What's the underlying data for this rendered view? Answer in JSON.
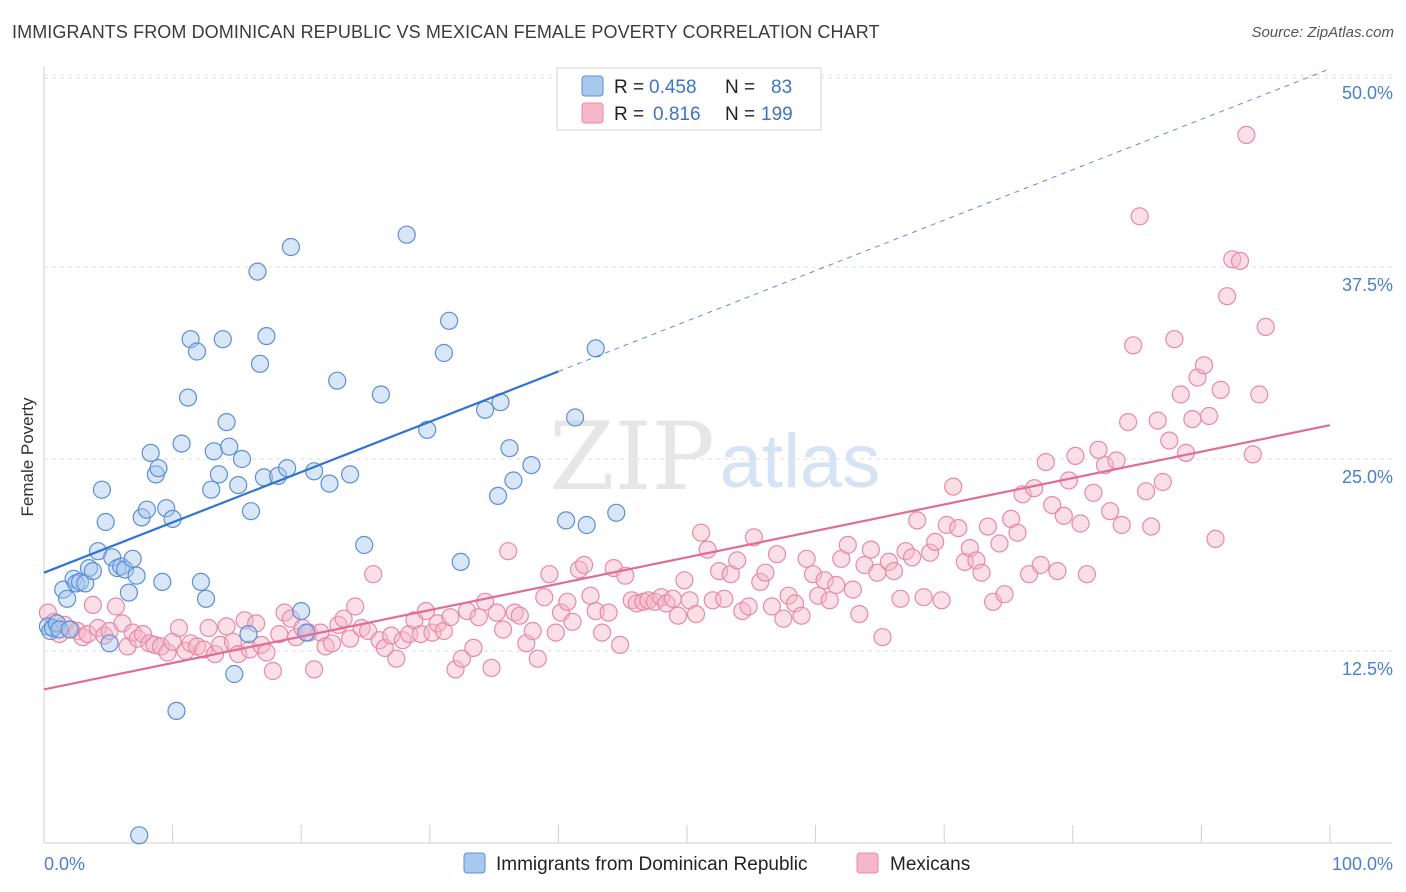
{
  "title": "IMMIGRANTS FROM DOMINICAN REPUBLIC VS MEXICAN FEMALE POVERTY CORRELATION CHART",
  "source": "Source: ZipAtlas.com",
  "watermark": {
    "zip": "ZIP",
    "atlas": "atlas"
  },
  "colors": {
    "blue_fill": "#a9c8ee",
    "blue_stroke": "#5b8fd6",
    "blue_line": "#2f74d0",
    "pink_fill": "#f5b8ca",
    "pink_stroke": "#e889a8",
    "pink_line": "#e06d96",
    "axis_text": "#4a7fd0",
    "grid": "#dcdcdc"
  },
  "legend": {
    "rows": [
      {
        "r_label": "R =",
        "r_value": "0.458",
        "n_label": "N =",
        "n_value": "83"
      },
      {
        "r_label": "R =",
        "r_value": "0.816",
        "n_label": "N =",
        "n_value": "199"
      }
    ]
  },
  "bottom_legend": [
    {
      "label": "Immigrants from Dominican Republic",
      "color": "blue"
    },
    {
      "label": "Mexicans",
      "color": "pink"
    }
  ],
  "chart_data": {
    "type": "scatter",
    "ylabel": "Female Poverty",
    "xlabel": "",
    "xlim": [
      0,
      100
    ],
    "ylim": [
      0,
      52
    ],
    "x_tick_labels": [
      "0.0%",
      "100.0%"
    ],
    "y_ticks": [
      12.5,
      25.0,
      37.5,
      50.0
    ],
    "y_tick_labels": [
      "12.5%",
      "25.0%",
      "37.5%",
      "50.0%"
    ],
    "grid": true,
    "series": [
      {
        "name": "Immigrants from Dominican Republic",
        "color": "blue",
        "trend": {
          "x": [
            0,
            40
          ],
          "y": [
            17.6,
            30.7
          ],
          "dashed_to": [
            100,
            50.4
          ]
        },
        "points": [
          [
            0.3,
            14.1
          ],
          [
            0.5,
            13.8
          ],
          [
            0.7,
            14.0
          ],
          [
            1.0,
            14.3
          ],
          [
            1.2,
            13.9
          ],
          [
            1.5,
            16.5
          ],
          [
            1.8,
            15.9
          ],
          [
            2.0,
            13.9
          ],
          [
            2.3,
            17.2
          ],
          [
            2.5,
            16.9
          ],
          [
            2.8,
            17.0
          ],
          [
            3.2,
            16.9
          ],
          [
            3.5,
            17.9
          ],
          [
            3.8,
            17.7
          ],
          [
            4.2,
            19.0
          ],
          [
            4.5,
            23.0
          ],
          [
            4.8,
            20.9
          ],
          [
            5.3,
            18.6
          ],
          [
            5.7,
            17.9
          ],
          [
            6.0,
            18.0
          ],
          [
            6.3,
            17.8
          ],
          [
            6.6,
            16.3
          ],
          [
            6.9,
            18.5
          ],
          [
            7.2,
            17.4
          ],
          [
            7.6,
            21.2
          ],
          [
            8.0,
            21.7
          ],
          [
            8.3,
            25.4
          ],
          [
            8.7,
            24.0
          ],
          [
            8.9,
            24.4
          ],
          [
            9.2,
            17.0
          ],
          [
            9.5,
            21.8
          ],
          [
            10.0,
            21.1
          ],
          [
            10.3,
            8.6
          ],
          [
            10.7,
            26.0
          ],
          [
            11.2,
            29.0
          ],
          [
            11.4,
            32.8
          ],
          [
            11.9,
            32.0
          ],
          [
            12.2,
            17.0
          ],
          [
            12.6,
            15.9
          ],
          [
            13.0,
            23.0
          ],
          [
            13.2,
            25.5
          ],
          [
            13.6,
            24.0
          ],
          [
            13.9,
            32.8
          ],
          [
            14.2,
            27.4
          ],
          [
            14.4,
            25.8
          ],
          [
            14.8,
            11.0
          ],
          [
            15.1,
            23.3
          ],
          [
            15.4,
            25.0
          ],
          [
            15.9,
            13.6
          ],
          [
            16.1,
            21.6
          ],
          [
            16.6,
            37.2
          ],
          [
            16.8,
            31.2
          ],
          [
            17.1,
            23.8
          ],
          [
            17.3,
            33.0
          ],
          [
            18.2,
            23.9
          ],
          [
            18.9,
            24.4
          ],
          [
            19.2,
            38.8
          ],
          [
            20.0,
            15.1
          ],
          [
            20.4,
            13.7
          ],
          [
            21.0,
            24.2
          ],
          [
            22.2,
            23.4
          ],
          [
            22.8,
            30.1
          ],
          [
            23.8,
            24.0
          ],
          [
            24.9,
            19.4
          ],
          [
            26.2,
            29.2
          ],
          [
            28.2,
            39.6
          ],
          [
            29.8,
            26.9
          ],
          [
            31.1,
            31.9
          ],
          [
            31.5,
            34.0
          ],
          [
            32.4,
            18.3
          ],
          [
            34.3,
            28.2
          ],
          [
            35.3,
            22.6
          ],
          [
            35.5,
            28.7
          ],
          [
            36.2,
            25.7
          ],
          [
            36.5,
            23.6
          ],
          [
            37.9,
            24.6
          ],
          [
            40.6,
            21.0
          ],
          [
            41.3,
            27.7
          ],
          [
            42.2,
            20.7
          ],
          [
            42.9,
            32.2
          ],
          [
            44.5,
            21.5
          ],
          [
            7.4,
            0.5
          ],
          [
            5.1,
            13.0
          ]
        ]
      },
      {
        "name": "Mexicans",
        "color": "pink",
        "trend": {
          "x": [
            0,
            100
          ],
          "y": [
            10.0,
            27.2
          ]
        },
        "points": [
          [
            0.3,
            15.0
          ],
          [
            0.8,
            14.4
          ],
          [
            1.2,
            13.6
          ],
          [
            1.6,
            14.2
          ],
          [
            2.1,
            13.9
          ],
          [
            2.6,
            13.8
          ],
          [
            3.0,
            13.4
          ],
          [
            3.4,
            13.6
          ],
          [
            3.8,
            15.5
          ],
          [
            4.2,
            14.0
          ],
          [
            4.7,
            13.5
          ],
          [
            5.1,
            13.8
          ],
          [
            5.6,
            15.4
          ],
          [
            6.1,
            14.3
          ],
          [
            6.5,
            12.8
          ],
          [
            6.9,
            13.7
          ],
          [
            7.3,
            13.3
          ],
          [
            7.7,
            13.6
          ],
          [
            8.2,
            13.0
          ],
          [
            8.6,
            12.9
          ],
          [
            9.1,
            12.8
          ],
          [
            9.6,
            12.4
          ],
          [
            10.0,
            13.1
          ],
          [
            10.5,
            14.0
          ],
          [
            11.0,
            12.5
          ],
          [
            11.4,
            13.0
          ],
          [
            11.9,
            12.8
          ],
          [
            12.4,
            12.6
          ],
          [
            12.8,
            14.0
          ],
          [
            13.3,
            12.3
          ],
          [
            13.7,
            12.9
          ],
          [
            14.2,
            14.1
          ],
          [
            14.7,
            13.1
          ],
          [
            15.1,
            12.3
          ],
          [
            15.6,
            14.5
          ],
          [
            16.0,
            12.6
          ],
          [
            16.5,
            14.3
          ],
          [
            16.9,
            12.9
          ],
          [
            17.3,
            12.4
          ],
          [
            17.8,
            11.2
          ],
          [
            18.3,
            13.6
          ],
          [
            18.7,
            15.0
          ],
          [
            19.2,
            14.6
          ],
          [
            19.6,
            13.4
          ],
          [
            20.1,
            14.0
          ],
          [
            20.6,
            13.7
          ],
          [
            21.0,
            11.3
          ],
          [
            21.5,
            13.7
          ],
          [
            21.9,
            12.8
          ],
          [
            22.4,
            13.0
          ],
          [
            22.9,
            14.2
          ],
          [
            23.3,
            14.6
          ],
          [
            23.8,
            13.3
          ],
          [
            24.2,
            15.4
          ],
          [
            24.7,
            14.0
          ],
          [
            25.2,
            13.8
          ],
          [
            25.6,
            17.5
          ],
          [
            26.1,
            13.2
          ],
          [
            26.5,
            12.7
          ],
          [
            27.0,
            13.5
          ],
          [
            27.4,
            12.0
          ],
          [
            27.9,
            13.2
          ],
          [
            28.4,
            13.6
          ],
          [
            28.8,
            14.5
          ],
          [
            29.3,
            13.6
          ],
          [
            29.7,
            15.1
          ],
          [
            30.2,
            13.7
          ],
          [
            30.6,
            14.3
          ],
          [
            31.1,
            13.8
          ],
          [
            31.6,
            14.7
          ],
          [
            32.0,
            11.3
          ],
          [
            32.5,
            12.0
          ],
          [
            32.9,
            15.1
          ],
          [
            33.4,
            12.7
          ],
          [
            33.8,
            14.7
          ],
          [
            34.3,
            15.7
          ],
          [
            34.8,
            11.4
          ],
          [
            35.2,
            15.0
          ],
          [
            35.7,
            13.9
          ],
          [
            36.1,
            19.0
          ],
          [
            36.6,
            15.0
          ],
          [
            37.0,
            14.8
          ],
          [
            37.5,
            13.0
          ],
          [
            38.0,
            13.8
          ],
          [
            38.4,
            12.0
          ],
          [
            38.9,
            16.0
          ],
          [
            39.3,
            17.5
          ],
          [
            39.8,
            13.7
          ],
          [
            40.2,
            15.0
          ],
          [
            40.7,
            15.7
          ],
          [
            41.1,
            14.4
          ],
          [
            41.6,
            17.8
          ],
          [
            42.0,
            18.1
          ],
          [
            42.5,
            16.1
          ],
          [
            42.9,
            15.1
          ],
          [
            43.4,
            13.7
          ],
          [
            43.9,
            15.0
          ],
          [
            44.3,
            17.9
          ],
          [
            44.8,
            12.9
          ],
          [
            45.2,
            17.4
          ],
          [
            45.7,
            15.8
          ],
          [
            46.1,
            15.6
          ],
          [
            46.6,
            15.7
          ],
          [
            47.0,
            15.8
          ],
          [
            47.5,
            15.7
          ],
          [
            48.0,
            16.0
          ],
          [
            48.4,
            15.6
          ],
          [
            48.9,
            15.9
          ],
          [
            49.3,
            14.8
          ],
          [
            49.8,
            17.1
          ],
          [
            50.2,
            15.8
          ],
          [
            50.7,
            14.9
          ],
          [
            51.1,
            20.2
          ],
          [
            51.6,
            19.1
          ],
          [
            52.0,
            15.8
          ],
          [
            52.5,
            17.7
          ],
          [
            52.9,
            15.9
          ],
          [
            53.4,
            17.5
          ],
          [
            53.9,
            18.4
          ],
          [
            54.3,
            15.1
          ],
          [
            54.8,
            15.4
          ],
          [
            55.2,
            19.9
          ],
          [
            55.7,
            17.0
          ],
          [
            56.1,
            17.6
          ],
          [
            56.6,
            15.4
          ],
          [
            57.0,
            18.8
          ],
          [
            57.5,
            14.6
          ],
          [
            57.9,
            16.1
          ],
          [
            58.4,
            15.6
          ],
          [
            58.9,
            14.8
          ],
          [
            59.3,
            18.5
          ],
          [
            59.8,
            17.5
          ],
          [
            60.2,
            16.1
          ],
          [
            60.7,
            17.1
          ],
          [
            61.1,
            15.8
          ],
          [
            61.6,
            16.8
          ],
          [
            62.0,
            18.5
          ],
          [
            62.5,
            19.4
          ],
          [
            62.9,
            16.5
          ],
          [
            63.4,
            14.9
          ],
          [
            63.8,
            18.1
          ],
          [
            64.3,
            19.1
          ],
          [
            64.8,
            17.6
          ],
          [
            65.2,
            13.4
          ],
          [
            65.7,
            18.3
          ],
          [
            66.1,
            17.7
          ],
          [
            66.6,
            15.9
          ],
          [
            67.0,
            19.0
          ],
          [
            67.5,
            18.6
          ],
          [
            67.9,
            21.0
          ],
          [
            68.4,
            16.0
          ],
          [
            68.9,
            18.9
          ],
          [
            69.3,
            19.6
          ],
          [
            69.8,
            15.8
          ],
          [
            70.2,
            20.7
          ],
          [
            70.7,
            23.2
          ],
          [
            71.1,
            20.5
          ],
          [
            71.6,
            18.3
          ],
          [
            72.0,
            19.2
          ],
          [
            72.5,
            18.4
          ],
          [
            72.9,
            17.6
          ],
          [
            73.4,
            20.6
          ],
          [
            73.8,
            15.7
          ],
          [
            74.3,
            19.5
          ],
          [
            74.7,
            16.2
          ],
          [
            75.2,
            21.1
          ],
          [
            75.7,
            20.2
          ],
          [
            76.1,
            22.7
          ],
          [
            76.6,
            17.5
          ],
          [
            77.0,
            23.1
          ],
          [
            77.5,
            18.1
          ],
          [
            77.9,
            24.8
          ],
          [
            78.4,
            22.0
          ],
          [
            78.8,
            17.7
          ],
          [
            79.3,
            21.3
          ],
          [
            79.7,
            23.6
          ],
          [
            80.2,
            25.2
          ],
          [
            80.6,
            20.8
          ],
          [
            81.1,
            17.5
          ],
          [
            81.6,
            22.8
          ],
          [
            82.0,
            25.6
          ],
          [
            82.5,
            24.6
          ],
          [
            82.9,
            21.6
          ],
          [
            83.4,
            24.9
          ],
          [
            83.8,
            20.7
          ],
          [
            84.3,
            27.4
          ],
          [
            84.7,
            32.4
          ],
          [
            85.2,
            40.8
          ],
          [
            85.7,
            22.9
          ],
          [
            86.1,
            20.6
          ],
          [
            86.6,
            27.5
          ],
          [
            87.0,
            23.5
          ],
          [
            87.5,
            26.2
          ],
          [
            87.9,
            32.8
          ],
          [
            88.4,
            29.2
          ],
          [
            88.8,
            25.4
          ],
          [
            89.3,
            27.6
          ],
          [
            89.7,
            30.3
          ],
          [
            90.2,
            31.1
          ],
          [
            90.6,
            27.8
          ],
          [
            91.1,
            19.8
          ],
          [
            91.5,
            29.5
          ],
          [
            92.0,
            35.6
          ],
          [
            92.4,
            38.0
          ],
          [
            93.0,
            37.9
          ],
          [
            93.5,
            46.1
          ],
          [
            94.0,
            25.3
          ],
          [
            94.5,
            29.2
          ],
          [
            95.0,
            33.6
          ]
        ]
      }
    ]
  }
}
